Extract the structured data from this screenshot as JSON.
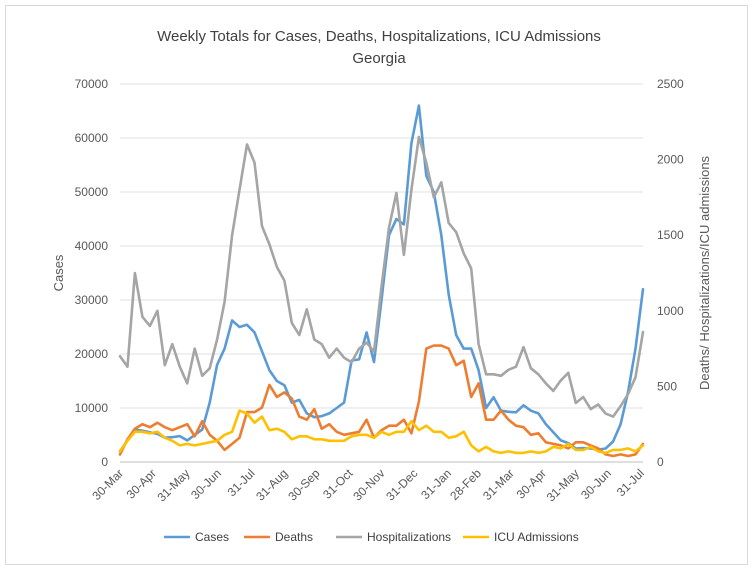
{
  "chart_data": {
    "type": "line",
    "title": "Weekly Totals for Cases, Deaths, Hospitalizations, ICU Admissions",
    "subtitle": "Georgia",
    "ylabel": "Cases",
    "y2label": "Deaths/ Hospitalizations/ICU admissions",
    "ylim": [
      0,
      70000
    ],
    "y2lim": [
      0,
      2500
    ],
    "yticks": [
      "0",
      "10000",
      "20000",
      "30000",
      "40000",
      "50000",
      "60000",
      "70000"
    ],
    "y2ticks": [
      "0",
      "500",
      "1000",
      "1500",
      "2000",
      "2500"
    ],
    "xticks": [
      {
        "label": "30-Mar",
        "index": 0
      },
      {
        "label": "30-Apr",
        "index": 4.4
      },
      {
        "label": "31-May",
        "index": 8.9
      },
      {
        "label": "30-Jun",
        "index": 13.1
      },
      {
        "label": "31-Jul",
        "index": 17.6
      },
      {
        "label": "31-Aug",
        "index": 22
      },
      {
        "label": "30-Sep",
        "index": 26.3
      },
      {
        "label": "31-Oct",
        "index": 30.7
      },
      {
        "label": "30-Nov",
        "index": 35
      },
      {
        "label": "31-Dec",
        "index": 39.4
      },
      {
        "label": "31-Jan",
        "index": 43.9
      },
      {
        "label": "28-Feb",
        "index": 47.9
      },
      {
        "label": "31-Mar",
        "index": 52.3
      },
      {
        "label": "30-Apr",
        "index": 56.6
      },
      {
        "label": "31-May",
        "index": 61
      },
      {
        "label": "30-Jun",
        "index": 65.3
      },
      {
        "label": "31-Jul",
        "index": 69.7
      }
    ],
    "grid": true,
    "legend_position": "bottom",
    "series": [
      {
        "name": "Cases",
        "axis": "left",
        "color": "#5b9bd5",
        "values": [
          2000,
          4000,
          6000,
          5800,
          5500,
          5200,
          4500,
          4600,
          4800,
          4000,
          5000,
          6000,
          11000,
          18000,
          21000,
          26200,
          25000,
          25400,
          24000,
          20500,
          17000,
          15000,
          14200,
          11000,
          11500,
          9000,
          8300,
          8500,
          9000,
          10000,
          11000,
          18800,
          19000,
          24000,
          18500,
          30000,
          42000,
          45000,
          44000,
          59000,
          66000,
          53000,
          50000,
          42000,
          31000,
          23500,
          21000,
          21000,
          17000,
          10000,
          12000,
          9500,
          9300,
          9200,
          10500,
          9500,
          9000,
          7000,
          5500,
          4000,
          3500,
          2500,
          2600,
          2500,
          2300,
          2500,
          3800,
          7000,
          13000,
          21000,
          32000
        ]
      },
      {
        "name": "Deaths",
        "axis": "right",
        "color": "#ed7d31",
        "values": [
          50,
          150,
          220,
          250,
          230,
          260,
          230,
          210,
          230,
          250,
          170,
          270,
          180,
          140,
          80,
          120,
          160,
          330,
          330,
          360,
          510,
          430,
          460,
          420,
          300,
          280,
          350,
          220,
          250,
          200,
          180,
          190,
          200,
          280,
          160,
          210,
          240,
          240,
          280,
          190,
          400,
          750,
          770,
          770,
          750,
          640,
          670,
          430,
          520,
          280,
          280,
          340,
          280,
          240,
          230,
          180,
          190,
          130,
          120,
          110,
          90,
          130,
          130,
          110,
          90,
          50,
          40,
          50,
          40,
          50,
          120
        ]
      },
      {
        "name": "Hospitalizations",
        "axis": "right",
        "color": "#a5a5a5",
        "values": [
          700,
          630,
          1250,
          960,
          900,
          1000,
          640,
          780,
          630,
          520,
          750,
          570,
          620,
          810,
          1060,
          1500,
          1800,
          2100,
          1980,
          1560,
          1440,
          1290,
          1200,
          920,
          840,
          1010,
          810,
          780,
          690,
          750,
          690,
          660,
          750,
          790,
          730,
          1160,
          1550,
          1780,
          1370,
          1800,
          2150,
          1980,
          1750,
          1850,
          1580,
          1520,
          1380,
          1280,
          780,
          580,
          580,
          570,
          610,
          630,
          760,
          620,
          580,
          520,
          470,
          540,
          590,
          390,
          430,
          350,
          380,
          320,
          300,
          370,
          450,
          560,
          860
        ]
      },
      {
        "name": "ICU Admissions",
        "axis": "right",
        "color": "#ffc000",
        "values": [
          70,
          140,
          200,
          200,
          190,
          200,
          160,
          140,
          110,
          120,
          110,
          120,
          130,
          140,
          180,
          200,
          340,
          320,
          260,
          300,
          210,
          220,
          200,
          150,
          170,
          170,
          150,
          150,
          140,
          140,
          140,
          170,
          180,
          180,
          160,
          200,
          180,
          200,
          200,
          270,
          210,
          240,
          200,
          200,
          160,
          170,
          200,
          110,
          70,
          100,
          70,
          60,
          70,
          60,
          60,
          70,
          60,
          70,
          100,
          90,
          120,
          80,
          80,
          100,
          70,
          60,
          80,
          80,
          90,
          70,
          110
        ]
      }
    ]
  }
}
